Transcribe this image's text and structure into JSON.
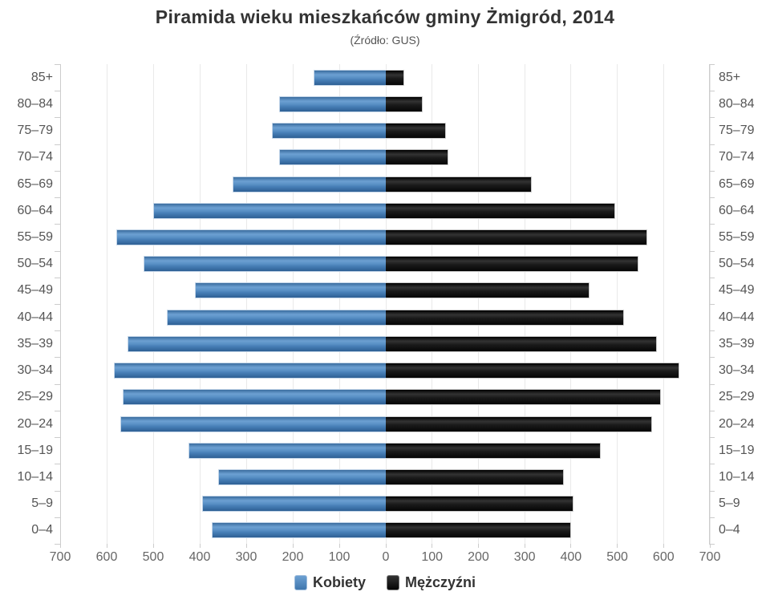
{
  "header": {
    "title": "Piramida wieku mieszkańców gminy Żmigród, 2014",
    "subtitle": "(Źródło: GUS)"
  },
  "chart_data": {
    "type": "bar",
    "variant": "population-pyramid",
    "title": "Piramida wieku mieszkańców gminy Żmigród, 2014",
    "subtitle": "(Źródło: GUS)",
    "categories": [
      "85+",
      "80–84",
      "75–79",
      "70–74",
      "65–69",
      "60–64",
      "55–59",
      "50–54",
      "45–49",
      "40–44",
      "35–39",
      "30–34",
      "25–29",
      "20–24",
      "15–19",
      "10–14",
      "5–9",
      "0–4"
    ],
    "series": [
      {
        "name": "Kobiety",
        "side": "left",
        "color": "#4b86c2",
        "values": [
          155,
          230,
          245,
          230,
          330,
          500,
          580,
          520,
          410,
          470,
          555,
          585,
          565,
          570,
          425,
          360,
          395,
          375
        ]
      },
      {
        "name": "Mężczyźni",
        "side": "right",
        "color": "#141414",
        "values": [
          40,
          80,
          130,
          135,
          315,
          495,
          565,
          545,
          440,
          515,
          585,
          635,
          595,
          575,
          465,
          385,
          405,
          400
        ]
      }
    ],
    "xlim": [
      0,
      700
    ],
    "x_tick_step": 100,
    "x_tick_labels": [
      "700",
      "600",
      "500",
      "400",
      "300",
      "200",
      "100",
      "0",
      "100",
      "200",
      "300",
      "400",
      "500",
      "600",
      "700"
    ],
    "grid": true,
    "legend_position": "bottom"
  },
  "legend": {
    "items": [
      {
        "label": "Kobiety",
        "color": "#4b86c2"
      },
      {
        "label": "Mężczyźni",
        "color": "#141414"
      }
    ]
  }
}
